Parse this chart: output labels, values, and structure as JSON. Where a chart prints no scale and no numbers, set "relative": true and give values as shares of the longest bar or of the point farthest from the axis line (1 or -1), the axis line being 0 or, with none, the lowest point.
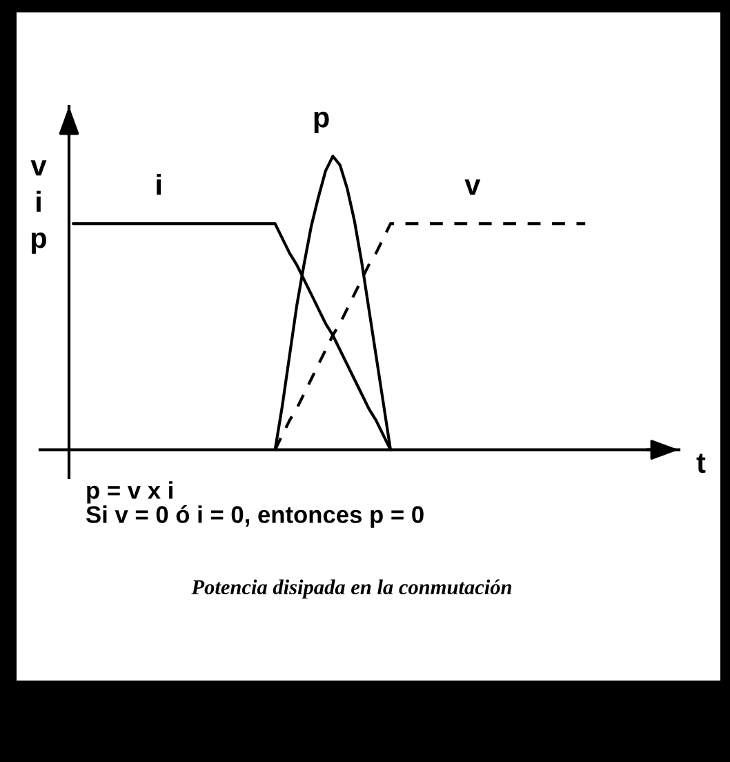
{
  "chart_data": {
    "type": "line",
    "relative": true,
    "xlabel": "t",
    "ylabel": "v\ni\np",
    "annotations": [
      "p = v x i",
      "Si v = 0 ó i = 0, entonces p = 0",
      "Potencia disipada en la conmutación"
    ],
    "categories": [
      null,
      null,
      null,
      null,
      null,
      null,
      null,
      null,
      null,
      null,
      null,
      null,
      null,
      null,
      null,
      null,
      null,
      null,
      null,
      null,
      null,
      null,
      null,
      null,
      null,
      null,
      null,
      null,
      null,
      null,
      null,
      null,
      null,
      null,
      null,
      null,
      null,
      null,
      null,
      null,
      null,
      null,
      null,
      null,
      null,
      null,
      null,
      null,
      null,
      null,
      null,
      null,
      null,
      null,
      null,
      null,
      null,
      null,
      null,
      null,
      null,
      null,
      null,
      null,
      null,
      null,
      null,
      null,
      null,
      null,
      null,
      null
    ],
    "series": [
      {
        "name": "v",
        "color": "#000000",
        "line_style": "dashed",
        "values": [
          null,
          null,
          null,
          null,
          null,
          null,
          null,
          null,
          null,
          null,
          null,
          null,
          null,
          null,
          null,
          null,
          null,
          null,
          null,
          null,
          null,
          null,
          null,
          null,
          null,
          null,
          null,
          null,
          0,
          0.05,
          0.1,
          0.14,
          0.19,
          0.24,
          0.29,
          0.34,
          0.39,
          0.43,
          0.48,
          0.53,
          0.58,
          0.63,
          0.67,
          0.72,
          0.77,
          0.77,
          0.77,
          0.77,
          0.77,
          0.77,
          0.77,
          0.77,
          0.77,
          0.77,
          0.77,
          0.77,
          0.77,
          0.77,
          0.77,
          0.77,
          0.77,
          0.77,
          0.77,
          0.77,
          0.77,
          0.77,
          0.77,
          0.77,
          0.77,
          0.77,
          0.77,
          0.77
        ]
      },
      {
        "name": "i",
        "color": "#000000",
        "line_style": "solid",
        "values": [
          0.77,
          0.77,
          0.77,
          0.77,
          0.77,
          0.77,
          0.77,
          0.77,
          0.77,
          0.77,
          0.77,
          0.77,
          0.77,
          0.77,
          0.77,
          0.77,
          0.77,
          0.77,
          0.77,
          0.77,
          0.77,
          0.77,
          0.77,
          0.77,
          0.77,
          0.77,
          0.77,
          0.77,
          0.77,
          0.72,
          0.67,
          0.63,
          0.58,
          0.53,
          0.48,
          0.43,
          0.39,
          0.34,
          0.29,
          0.24,
          0.19,
          0.14,
          0.1,
          0.05,
          0,
          null,
          null,
          null,
          null,
          null,
          null,
          null,
          null,
          null,
          null,
          null,
          null,
          null,
          null,
          null,
          null,
          null,
          null,
          null,
          null,
          null,
          null,
          null,
          null,
          null,
          null,
          null
        ]
      },
      {
        "name": "p",
        "color": "#000000",
        "line_style": "solid",
        "values": [
          null,
          null,
          null,
          null,
          null,
          null,
          null,
          null,
          null,
          null,
          null,
          null,
          null,
          null,
          null,
          null,
          null,
          null,
          null,
          null,
          null,
          null,
          null,
          null,
          null,
          null,
          null,
          null,
          0,
          0.15,
          0.32,
          0.49,
          0.63,
          0.76,
          0.86,
          0.95,
          1,
          0.97,
          0.89,
          0.78,
          0.64,
          0.48,
          0.32,
          0.16,
          0,
          null,
          null,
          null,
          null,
          null,
          null,
          null,
          null,
          null,
          null,
          null,
          null,
          null,
          null,
          null,
          null,
          null,
          null,
          null,
          null,
          null,
          null,
          null,
          null,
          null,
          null,
          null
        ]
      }
    ]
  }
}
